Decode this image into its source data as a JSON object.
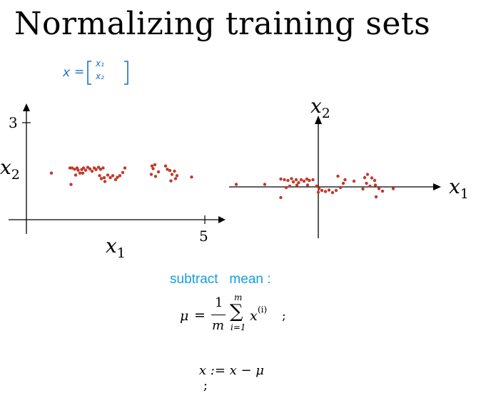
{
  "title": "Normalizing training sets",
  "handwritten_note": {
    "lhs": "x",
    "eq": "=",
    "top": "x₁",
    "bottom": "x₂"
  },
  "left_plot": {
    "y_tick": "3",
    "x_tick": "5",
    "x_label_base": "x",
    "x_label_sub": "1",
    "y_label_base": "x",
    "y_label_sub": "2",
    "point_color": "#c0392b"
  },
  "right_plot": {
    "x_label_base": "x",
    "x_label_sub": "1",
    "y_label_base": "x",
    "y_label_sub": "2",
    "point_color": "#c0392b"
  },
  "caption": "subtract   mean :",
  "formula_mu": {
    "lhs": "μ",
    "eq": "=",
    "frac_num": "1",
    "frac_den": "m",
    "sum_top": "m",
    "sum_sym": "∑",
    "sum_bottom": "i=1",
    "term_base": "x",
    "term_sup": "(i)",
    "end": ";"
  },
  "formula_x": {
    "text": "x := x − μ",
    "end": ";"
  },
  "chart_data": [
    {
      "type": "scatter",
      "title": "",
      "xlabel": "x1",
      "ylabel": "x2",
      "xlim": [
        0,
        5
      ],
      "ylim": [
        0,
        3
      ],
      "x_ticks": [
        "5"
      ],
      "y_ticks": [
        "3"
      ],
      "grid": false,
      "series": [
        {
          "points": [
            [
              0.7,
              1.44
            ],
            [
              1.22,
              1.6
            ],
            [
              1.28,
              1.6
            ],
            [
              1.35,
              1.56
            ],
            [
              1.42,
              1.6
            ],
            [
              1.45,
              1.53
            ],
            [
              1.5,
              1.44
            ],
            [
              1.55,
              1.55
            ],
            [
              1.6,
              1.6
            ],
            [
              1.66,
              1.53
            ],
            [
              1.72,
              1.62
            ],
            [
              1.78,
              1.57
            ],
            [
              1.84,
              1.5
            ],
            [
              1.9,
              1.6
            ],
            [
              1.95,
              1.55
            ],
            [
              2.02,
              1.62
            ],
            [
              2.08,
              1.56
            ],
            [
              2.15,
              1.6
            ],
            [
              1.38,
              1.38
            ],
            [
              1.58,
              1.44
            ],
            [
              2.05,
              1.36
            ],
            [
              2.1,
              1.27
            ],
            [
              2.18,
              1.3
            ],
            [
              2.28,
              1.38
            ],
            [
              2.35,
              1.3
            ],
            [
              2.42,
              1.36
            ],
            [
              2.5,
              1.24
            ],
            [
              2.55,
              1.31
            ],
            [
              2.62,
              1.36
            ],
            [
              2.7,
              1.46
            ],
            [
              2.76,
              1.6
            ],
            [
              3.52,
              1.66
            ],
            [
              3.6,
              1.7
            ],
            [
              3.55,
              1.58
            ],
            [
              3.7,
              1.48
            ],
            [
              3.5,
              1.4
            ],
            [
              3.62,
              1.34
            ],
            [
              3.9,
              1.66
            ],
            [
              3.95,
              1.56
            ],
            [
              4.02,
              1.52
            ],
            [
              4.08,
              1.4
            ],
            [
              4.15,
              1.5
            ],
            [
              4.22,
              1.36
            ],
            [
              4.18,
              1.27
            ],
            [
              4.05,
              1.2
            ],
            [
              4.63,
              1.32
            ],
            [
              1.25,
              1.09
            ],
            [
              2.2,
              1.18
            ]
          ]
        }
      ]
    },
    {
      "type": "scatter",
      "title": "",
      "xlabel": "x1",
      "ylabel": "x2",
      "grid": false,
      "series": [
        {
          "points": [
            [
              -2.3,
              0.07
            ],
            [
              -1.5,
              0.07
            ],
            [
              -1.05,
              0.22
            ],
            [
              -0.95,
              0.2
            ],
            [
              -0.85,
              0.18
            ],
            [
              -0.75,
              0.23
            ],
            [
              -0.7,
              0.14
            ],
            [
              -0.62,
              0.2
            ],
            [
              -0.55,
              0.12
            ],
            [
              -0.48,
              0.2
            ],
            [
              -0.4,
              0.16
            ],
            [
              -0.32,
              0.22
            ],
            [
              -0.25,
              0.18
            ],
            [
              -0.15,
              0.2
            ],
            [
              -0.8,
              0.02
            ],
            [
              -0.9,
              -0.02
            ],
            [
              -0.6,
              0.05
            ],
            [
              -0.3,
              0.05
            ],
            [
              -0.05,
              0.02
            ],
            [
              0.02,
              -0.05
            ],
            [
              0.1,
              -0.1
            ],
            [
              0.2,
              -0.13
            ],
            [
              0.3,
              -0.09
            ],
            [
              0.4,
              -0.16
            ],
            [
              0.5,
              -0.1
            ],
            [
              0.62,
              -0.02
            ],
            [
              0.7,
              0.1
            ],
            [
              0.75,
              0.2
            ],
            [
              1.0,
              0.16
            ],
            [
              1.3,
              0.26
            ],
            [
              1.38,
              0.35
            ],
            [
              1.5,
              0.25
            ],
            [
              1.58,
              0.18
            ],
            [
              1.35,
              0.1
            ],
            [
              1.45,
              0.02
            ],
            [
              1.25,
              -0.06
            ],
            [
              1.6,
              0.05
            ],
            [
              1.7,
              -0.05
            ],
            [
              1.8,
              -0.12
            ],
            [
              1.62,
              -0.28
            ],
            [
              2.1,
              -0.05
            ],
            [
              -1.05,
              -0.3
            ],
            [
              0.0,
              -0.15
            ],
            [
              0.55,
              0.3
            ]
          ]
        }
      ]
    }
  ]
}
